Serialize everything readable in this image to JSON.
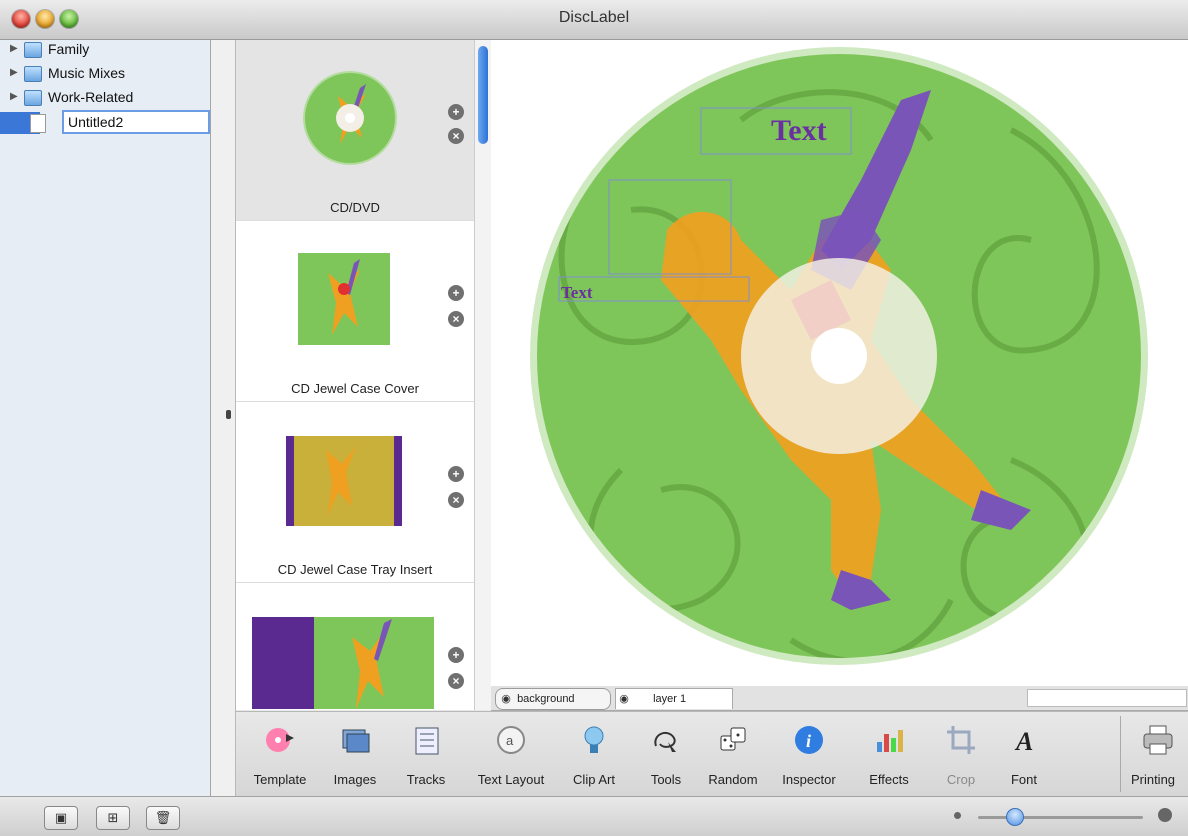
{
  "window": {
    "title": "DiscLabel"
  },
  "sidebar": {
    "items": [
      {
        "label": "Family",
        "icon": "folder-icon"
      },
      {
        "label": "Music Mixes",
        "icon": "folder-icon"
      },
      {
        "label": "Work-Related",
        "icon": "folder-icon"
      },
      {
        "label": "Untitled2",
        "icon": "document-icon",
        "selected": true
      }
    ]
  },
  "templates": [
    {
      "label": "CD/DVD",
      "selected": true
    },
    {
      "label": "CD Jewel Case Cover"
    },
    {
      "label": "CD Jewel Case Tray Insert"
    },
    {
      "label": ""
    }
  ],
  "canvas": {
    "text_large": "Text",
    "text_small": "Text"
  },
  "layers": {
    "tabs": [
      {
        "label": "background",
        "icon": "eye-icon"
      },
      {
        "label": "layer 1",
        "icon": "eye-icon"
      }
    ]
  },
  "toolbar": {
    "tools": [
      {
        "label": "Template",
        "icon": "template-icon"
      },
      {
        "label": "Images",
        "icon": "images-icon"
      },
      {
        "label": "Tracks",
        "icon": "tracks-icon"
      },
      {
        "label": "Text Layout",
        "icon": "text-layout-icon"
      },
      {
        "label": "Clip Art",
        "icon": "clip-art-icon"
      },
      {
        "label": "Tools",
        "icon": "tools-icon"
      },
      {
        "label": "Random",
        "icon": "dice-icon"
      },
      {
        "label": "Inspector",
        "icon": "info-icon"
      },
      {
        "label": "Effects",
        "icon": "effects-icon"
      },
      {
        "label": "Crop",
        "icon": "crop-icon",
        "disabled": true
      },
      {
        "label": "Font",
        "icon": "font-icon"
      },
      {
        "label": "Printing",
        "icon": "printer-icon"
      }
    ]
  },
  "colors": {
    "disc_green": "#7fc65a",
    "text_purple": "#6a2fa0",
    "selection_blue": "#3b77d6"
  }
}
